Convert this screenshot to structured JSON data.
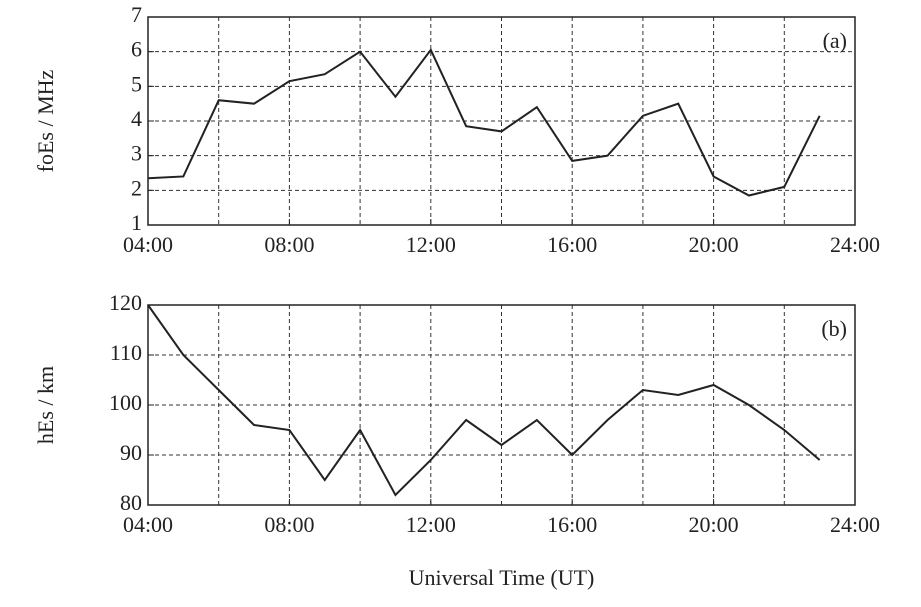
{
  "chart_data": [
    {
      "type": "line",
      "annotation": "(a)",
      "ylabel": "foEs / MHz",
      "x": [
        4,
        5,
        6,
        7,
        8,
        9,
        10,
        11,
        12,
        13,
        14,
        15,
        16,
        17,
        18,
        19,
        20,
        21,
        22,
        23
      ],
      "series": [
        {
          "color": "#222222",
          "values": [
            2.35,
            2.4,
            4.6,
            4.5,
            5.15,
            5.35,
            6.0,
            4.7,
            6.05,
            3.85,
            3.7,
            4.4,
            2.85,
            3.0,
            4.15,
            4.5,
            2.4,
            1.85,
            2.1,
            4.15
          ]
        }
      ],
      "xlim": [
        4,
        24
      ],
      "xticks": [
        {
          "value": 4,
          "label": "04:00"
        },
        {
          "value": 8,
          "label": "08:00"
        },
        {
          "value": 12,
          "label": "12:00"
        },
        {
          "value": 16,
          "label": "16:00"
        },
        {
          "value": 20,
          "label": "20:00"
        },
        {
          "value": 24,
          "label": "24:00"
        }
      ],
      "xgrid": [
        6,
        10,
        14,
        18,
        22
      ],
      "ylim": [
        1,
        7
      ],
      "yticks": [
        1,
        2,
        3,
        4,
        5,
        6,
        7
      ],
      "grid": true
    },
    {
      "type": "line",
      "annotation": "(b)",
      "ylabel": "hEs / km",
      "xlabel": "Universal Time (UT)",
      "x": [
        4,
        5,
        6,
        7,
        8,
        9,
        10,
        11,
        12,
        13,
        14,
        15,
        16,
        17,
        18,
        19,
        20,
        21,
        22,
        23
      ],
      "series": [
        {
          "color": "#222222",
          "values": [
            120,
            110,
            103,
            96,
            95,
            85,
            95,
            82,
            89,
            97,
            92,
            97,
            90,
            97,
            103,
            102,
            104,
            100,
            95,
            89
          ]
        }
      ],
      "xlim": [
        4,
        24
      ],
      "xticks": [
        {
          "value": 4,
          "label": "04:00"
        },
        {
          "value": 8,
          "label": "08:00"
        },
        {
          "value": 12,
          "label": "12:00"
        },
        {
          "value": 16,
          "label": "16:00"
        },
        {
          "value": 20,
          "label": "20:00"
        },
        {
          "value": 24,
          "label": "24:00"
        }
      ],
      "xgrid": [
        6,
        10,
        14,
        18,
        22
      ],
      "ylim": [
        80,
        120
      ],
      "yticks": [
        80,
        90,
        100,
        110,
        120
      ],
      "grid": true
    }
  ]
}
